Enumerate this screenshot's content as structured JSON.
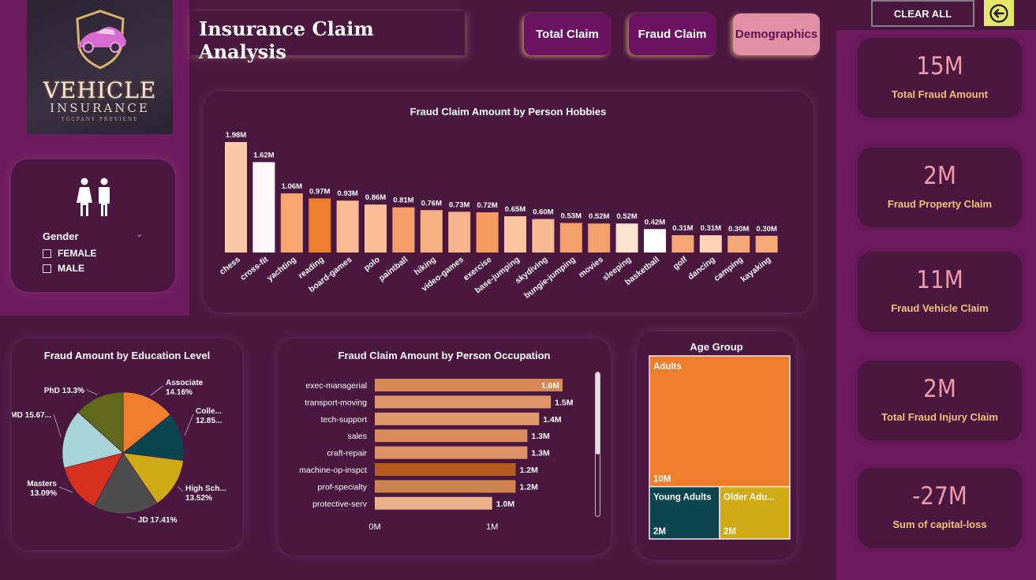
{
  "logo": {
    "line1": "VEHICLE",
    "line2": "INSURANCE",
    "line3": "TGCPANY PREVIENE"
  },
  "header": {
    "title": "Insurance Claim Analysis"
  },
  "nav": {
    "total_claim": "Total Claim",
    "fraud_claim": "Fraud Claim",
    "demographics": "Demographics"
  },
  "controls": {
    "clear_all": "CLEAR ALL"
  },
  "gender": {
    "label": "Gender",
    "options": [
      "FEMALE",
      "MALE"
    ]
  },
  "kpis": [
    {
      "value": "15M",
      "label": "Total Fraud Amount"
    },
    {
      "value": "2M",
      "label": "Fraud Property Claim"
    },
    {
      "value": "11M",
      "label": "Fraud Vehicle Claim"
    },
    {
      "value": "2M",
      "label": "Total Fraud Injury Claim"
    },
    {
      "value": "-27M",
      "label": "Sum of capital-loss"
    }
  ],
  "chart_data": [
    {
      "type": "bar",
      "title": "Fraud Claim Amount by Person Hobbies",
      "categories": [
        "chess",
        "cross-fit",
        "yachting",
        "reading",
        "board-games",
        "polo",
        "paintball",
        "hiking",
        "video-games",
        "exercise",
        "base-jumping",
        "skydiving",
        "bungie-jumping",
        "movies",
        "sleeping",
        "basketball",
        "golf",
        "dancing",
        "camping",
        "kayaking"
      ],
      "values": [
        1.98,
        1.62,
        1.06,
        0.97,
        0.93,
        0.86,
        0.81,
        0.76,
        0.73,
        0.72,
        0.65,
        0.6,
        0.53,
        0.52,
        0.52,
        0.42,
        0.31,
        0.31,
        0.3,
        0.3
      ],
      "labels": [
        "1.98M",
        "1.62M",
        "1.06M",
        "0.97M",
        "0.93M",
        "0.86M",
        "0.81M",
        "0.76M",
        "0.73M",
        "0.72M",
        "0.65M",
        "0.60M",
        "0.53M",
        "0.52M",
        "0.52M",
        "0.42M",
        "0.31M",
        "0.31M",
        "0.30M",
        "0.30M"
      ],
      "colors": [
        "#fbc9a7",
        "#fff6f9",
        "#f6a56e",
        "#ef7d2c",
        "#f9bb91",
        "#f9bf97",
        "#f59f67",
        "#f7b081",
        "#f7b389",
        "#f49b5f",
        "#f9c4a0",
        "#f8ba94",
        "#f4a06a",
        "#f3a06e",
        "#fde2cf",
        "#ffffff",
        "#f5a473",
        "#fbd2b4",
        "#f5a676",
        "#f5a878"
      ],
      "unit": "M",
      "ylim": [
        0,
        2.1
      ]
    },
    {
      "type": "pie",
      "title": "Fraud Amount by Education Level",
      "series": [
        {
          "name": "Associate",
          "value": 14.16,
          "label": "Associate 14.16%",
          "color": "#ef7d2c"
        },
        {
          "name": "College",
          "value": 12.85,
          "label": "Colle... 12.85...",
          "color": "#0b4650"
        },
        {
          "name": "High School",
          "value": 13.52,
          "label": "High Sch... 13.52%",
          "color": "#cfaa14"
        },
        {
          "name": "JD",
          "value": 17.41,
          "label": "JD 17.41%",
          "color": "#4d4d4d"
        },
        {
          "name": "Masters",
          "value": 13.09,
          "label": "Masters 13.09%",
          "color": "#d6301f"
        },
        {
          "name": "MD",
          "value": 15.67,
          "label": "MD 15.67...",
          "color": "#a9d3da"
        },
        {
          "name": "PhD",
          "value": 13.3,
          "label": "PhD 13.3%",
          "color": "#5e6a1a"
        }
      ]
    },
    {
      "type": "bar",
      "orientation": "horizontal",
      "title": "Fraud Claim Amount by Person Occupation",
      "categories": [
        "exec-managerial",
        "transport-moving",
        "tech-support",
        "sales",
        "craft-repair",
        "machine-op-inspct",
        "prof-specialty",
        "protective-serv"
      ],
      "values": [
        1.6,
        1.5,
        1.4,
        1.3,
        1.3,
        1.2,
        1.2,
        1.0
      ],
      "labels": [
        "1.6M",
        "1.5M",
        "1.4M",
        "1.3M",
        "1.3M",
        "1.2M",
        "1.2M",
        "1.0M"
      ],
      "colors": [
        "#d58a56",
        "#de9667",
        "#e0996a",
        "#d88c5b",
        "#dc9266",
        "#b65d1e",
        "#cf8450",
        "#eab088"
      ],
      "xticks": [
        "0M",
        "1M"
      ],
      "xlim": [
        0,
        1.6
      ]
    },
    {
      "type": "treemap",
      "title": "Age Group",
      "series": [
        {
          "name": "Adults",
          "value": 10,
          "label": "10M",
          "color": "#ef7d2c"
        },
        {
          "name": "Young Adults",
          "value": 2,
          "label": "2M",
          "color": "#0b4650"
        },
        {
          "name": "Older Adu...",
          "value": 2,
          "label": "2M",
          "color": "#cfaa14"
        }
      ]
    }
  ]
}
